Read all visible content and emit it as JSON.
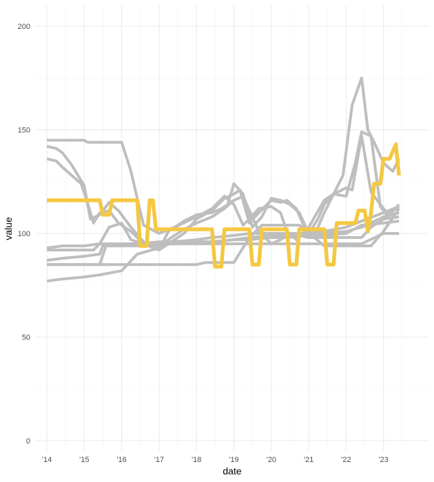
{
  "chart_data": {
    "type": "line",
    "xlabel": "date",
    "ylabel": "value",
    "ylim": [
      -5,
      210
    ],
    "xlim": [
      "2013-09-15",
      "2024-03-15"
    ],
    "y_ticks": [
      0,
      50,
      100,
      150,
      200
    ],
    "x_ticks": [
      {
        "date": "2014-01-01",
        "label": "'14"
      },
      {
        "date": "2015-01-01",
        "label": "'15"
      },
      {
        "date": "2016-01-01",
        "label": "'16"
      },
      {
        "date": "2017-01-01",
        "label": "'17"
      },
      {
        "date": "2018-01-01",
        "label": "'18"
      },
      {
        "date": "2019-01-01",
        "label": "'19"
      },
      {
        "date": "2020-01-01",
        "label": "'20"
      },
      {
        "date": "2021-01-01",
        "label": "'21"
      },
      {
        "date": "2022-01-01",
        "label": "'22"
      },
      {
        "date": "2023-01-01",
        "label": "'23"
      }
    ],
    "grid": true,
    "background_color": "#bebebe",
    "highlight_color": "#f5c842",
    "series": [
      {
        "highlight": false,
        "x": [
          "2014-01",
          "2014-06",
          "2015-01",
          "2015-06",
          "2016-01",
          "2016-06",
          "2017-01",
          "2017-06",
          "2018-01",
          "2018-06",
          "2019-01",
          "2019-06",
          "2020-01",
          "2020-06",
          "2021-01",
          "2021-06",
          "2022-01",
          "2022-06",
          "2023-01",
          "2023-06"
        ],
        "y": [
          93,
          94,
          94,
          95,
          95,
          95,
          95,
          95,
          95,
          95,
          95,
          95,
          95,
          95,
          95,
          95,
          95,
          95,
          100,
          100
        ]
      },
      {
        "highlight": false,
        "x": [
          "2014-01",
          "2014-06",
          "2015-01",
          "2015-06",
          "2015-07",
          "2016-01",
          "2016-06",
          "2017-01",
          "2017-06",
          "2018-01",
          "2018-06",
          "2019-01",
          "2019-06",
          "2020-01",
          "2020-06",
          "2021-01",
          "2021-06",
          "2022-01",
          "2022-06",
          "2023-01",
          "2023-06"
        ],
        "y": [
          87,
          88,
          89,
          90,
          94,
          95,
          95,
          96,
          96,
          96,
          96,
          97,
          97,
          98,
          98,
          99,
          99,
          100,
          104,
          105,
          106
        ]
      },
      {
        "highlight": false,
        "x": [
          "2014-01",
          "2014-06",
          "2015-01",
          "2015-06",
          "2015-08",
          "2016-01",
          "2016-06",
          "2017-01",
          "2017-06",
          "2018-01",
          "2018-06",
          "2019-01",
          "2019-06",
          "2020-01",
          "2020-06",
          "2021-01",
          "2021-06",
          "2022-01",
          "2022-06",
          "2023-01",
          "2023-06"
        ],
        "y": [
          85,
          85,
          85,
          85,
          94,
          94,
          94,
          95,
          95,
          96,
          96,
          97,
          98,
          99,
          99,
          99,
          100,
          101,
          103,
          108,
          110
        ]
      },
      {
        "highlight": false,
        "x": [
          "2014-01",
          "2014-06",
          "2015-01",
          "2015-06",
          "2016-01",
          "2016-06",
          "2017-01",
          "2017-06",
          "2018-01",
          "2018-06",
          "2019-01",
          "2019-06",
          "2020-01",
          "2020-06",
          "2021-01",
          "2021-06",
          "2022-01",
          "2022-06",
          "2023-01",
          "2023-06"
        ],
        "y": [
          77,
          78,
          79,
          80,
          82,
          90,
          93,
          96,
          97,
          98,
          99,
          100,
          100,
          100,
          100,
          101,
          103,
          106,
          110,
          113
        ]
      },
      {
        "highlight": false,
        "x": [
          "2014-01",
          "2015-08",
          "2016-01",
          "2016-06",
          "2017-01",
          "2017-06",
          "2018-01",
          "2018-04",
          "2018-06",
          "2018-10",
          "2019-01",
          "2019-06",
          "2019-10",
          "2020-06",
          "2020-10",
          "2021-06",
          "2022-01",
          "2022-03",
          "2022-06",
          "2022-09",
          "2023-01",
          "2023-06"
        ],
        "y": [
          85,
          85,
          85,
          85,
          85,
          85,
          85,
          86,
          86,
          86,
          86,
          98,
          104,
          104,
          104,
          94,
          94,
          94,
          94,
          94,
          101,
          112
        ]
      },
      {
        "highlight": false,
        "x": [
          "2014-01",
          "2014-06",
          "2014-09",
          "2015-01",
          "2015-02",
          "2015-06",
          "2015-09",
          "2016-01",
          "2016-04",
          "2016-08",
          "2017-01",
          "2017-06",
          "2018-01",
          "2018-06",
          "2018-10",
          "2019-01",
          "2019-04",
          "2019-06",
          "2019-09",
          "2020-01",
          "2020-04",
          "2020-06",
          "2020-09",
          "2021-01",
          "2021-06",
          "2021-09",
          "2022-01",
          "2022-03",
          "2022-06",
          "2022-09",
          "2023-01",
          "2023-03",
          "2023-06"
        ],
        "y": [
          145,
          145,
          145,
          145,
          144,
          144,
          144,
          144,
          130,
          104,
          100,
          103,
          108,
          112,
          118,
          114,
          104,
          107,
          112,
          113,
          110,
          101,
          97,
          103,
          116,
          119,
          122,
          121,
          147,
          120,
          112,
          109,
          114
        ]
      },
      {
        "highlight": false,
        "x": [
          "2014-01",
          "2014-04",
          "2014-06",
          "2014-09",
          "2015-01",
          "2015-03",
          "2015-06",
          "2015-09",
          "2015-12",
          "2016-04",
          "2016-08",
          "2017-01",
          "2017-03",
          "2017-06",
          "2017-09",
          "2018-01",
          "2018-06",
          "2018-10",
          "2019-01",
          "2019-03",
          "2019-06",
          "2019-09",
          "2020-01",
          "2020-04",
          "2020-06",
          "2020-09",
          "2021-01",
          "2021-04",
          "2021-06",
          "2021-09",
          "2022-01",
          "2022-04",
          "2022-06",
          "2022-09",
          "2022-12",
          "2023-02",
          "2023-06"
        ],
        "y": [
          142,
          141,
          139,
          133,
          123,
          107,
          109,
          115,
          111,
          103,
          96,
          92,
          94,
          97,
          100,
          107,
          111,
          117,
          119,
          121,
          105,
          110,
          116,
          115,
          116,
          112,
          98,
          103,
          110,
          119,
          118,
          134,
          149,
          147,
          113,
          109,
          113
        ]
      },
      {
        "highlight": false,
        "x": [
          "2014-01",
          "2014-04",
          "2014-06",
          "2014-09",
          "2014-12",
          "2015-02",
          "2015-04",
          "2015-06",
          "2015-09",
          "2015-12",
          "2016-04",
          "2016-08",
          "2017-01",
          "2017-04",
          "2017-06",
          "2017-09",
          "2018-01",
          "2018-06",
          "2018-09",
          "2018-11",
          "2019-01",
          "2019-04",
          "2019-07",
          "2019-10",
          "2020-01",
          "2020-04",
          "2020-07",
          "2020-10",
          "2021-01",
          "2021-04",
          "2021-06",
          "2021-09",
          "2021-12",
          "2022-03",
          "2022-06",
          "2022-08",
          "2022-10",
          "2023-01",
          "2023-04",
          "2023-06"
        ],
        "y": [
          136,
          135,
          132,
          128,
          124,
          115,
          105,
          110,
          111,
          105,
          101,
          95,
          92,
          101,
          103,
          106,
          109,
          110,
          112,
          114,
          124,
          119,
          103,
          108,
          117,
          116,
          114,
          110,
          100,
          107,
          114,
          119,
          128,
          162,
          175,
          150,
          144,
          134,
          130,
          136
        ]
      },
      {
        "highlight": false,
        "x": [
          "2014-01",
          "2014-06",
          "2015-01",
          "2015-04",
          "2015-06",
          "2015-09",
          "2016-01",
          "2016-04",
          "2016-08",
          "2017-01",
          "2017-04",
          "2017-06",
          "2017-09",
          "2018-01",
          "2018-06",
          "2018-10",
          "2019-01",
          "2019-04",
          "2019-06",
          "2019-09",
          "2020-01",
          "2020-04",
          "2020-06",
          "2020-10",
          "2021-01",
          "2021-04",
          "2021-06",
          "2021-09",
          "2022-01",
          "2022-03",
          "2022-06",
          "2022-09",
          "2023-01",
          "2023-06"
        ],
        "y": [
          92,
          92,
          92,
          92,
          95,
          103,
          105,
          97,
          95,
          94,
          97,
          99,
          102,
          105,
          108,
          112,
          116,
          118,
          111,
          101,
          95,
          97,
          99,
          99,
          98,
          98,
          98,
          98,
          98,
          98,
          98,
          103,
          107,
          108
        ]
      },
      {
        "highlight": true,
        "x": [
          "2014-01",
          "2015-01",
          "2015-06",
          "2015-07",
          "2015-09",
          "2015-10",
          "2016-06",
          "2016-07",
          "2016-09",
          "2016-10",
          "2016-11",
          "2016-12",
          "2018-06",
          "2018-07",
          "2018-09",
          "2018-10",
          "2019-06",
          "2019-07",
          "2019-09",
          "2019-10",
          "2020-06",
          "2020-07",
          "2020-09",
          "2020-10",
          "2021-06",
          "2021-07",
          "2021-09",
          "2021-10",
          "2022-01",
          "2022-04",
          "2022-05",
          "2022-07",
          "2022-08",
          "2022-09",
          "2022-10",
          "2022-11",
          "2022-12",
          "2023-01",
          "2023-03",
          "2023-05",
          "2023-06"
        ],
        "y": [
          116,
          116,
          116,
          109,
          109,
          116,
          116,
          94,
          94,
          116,
          116,
          102,
          102,
          84,
          84,
          102,
          102,
          85,
          85,
          102,
          102,
          85,
          85,
          102,
          102,
          85,
          85,
          105,
          105,
          105,
          111,
          111,
          101,
          110,
          124,
          124,
          124,
          136,
          136,
          143,
          128
        ]
      }
    ]
  }
}
